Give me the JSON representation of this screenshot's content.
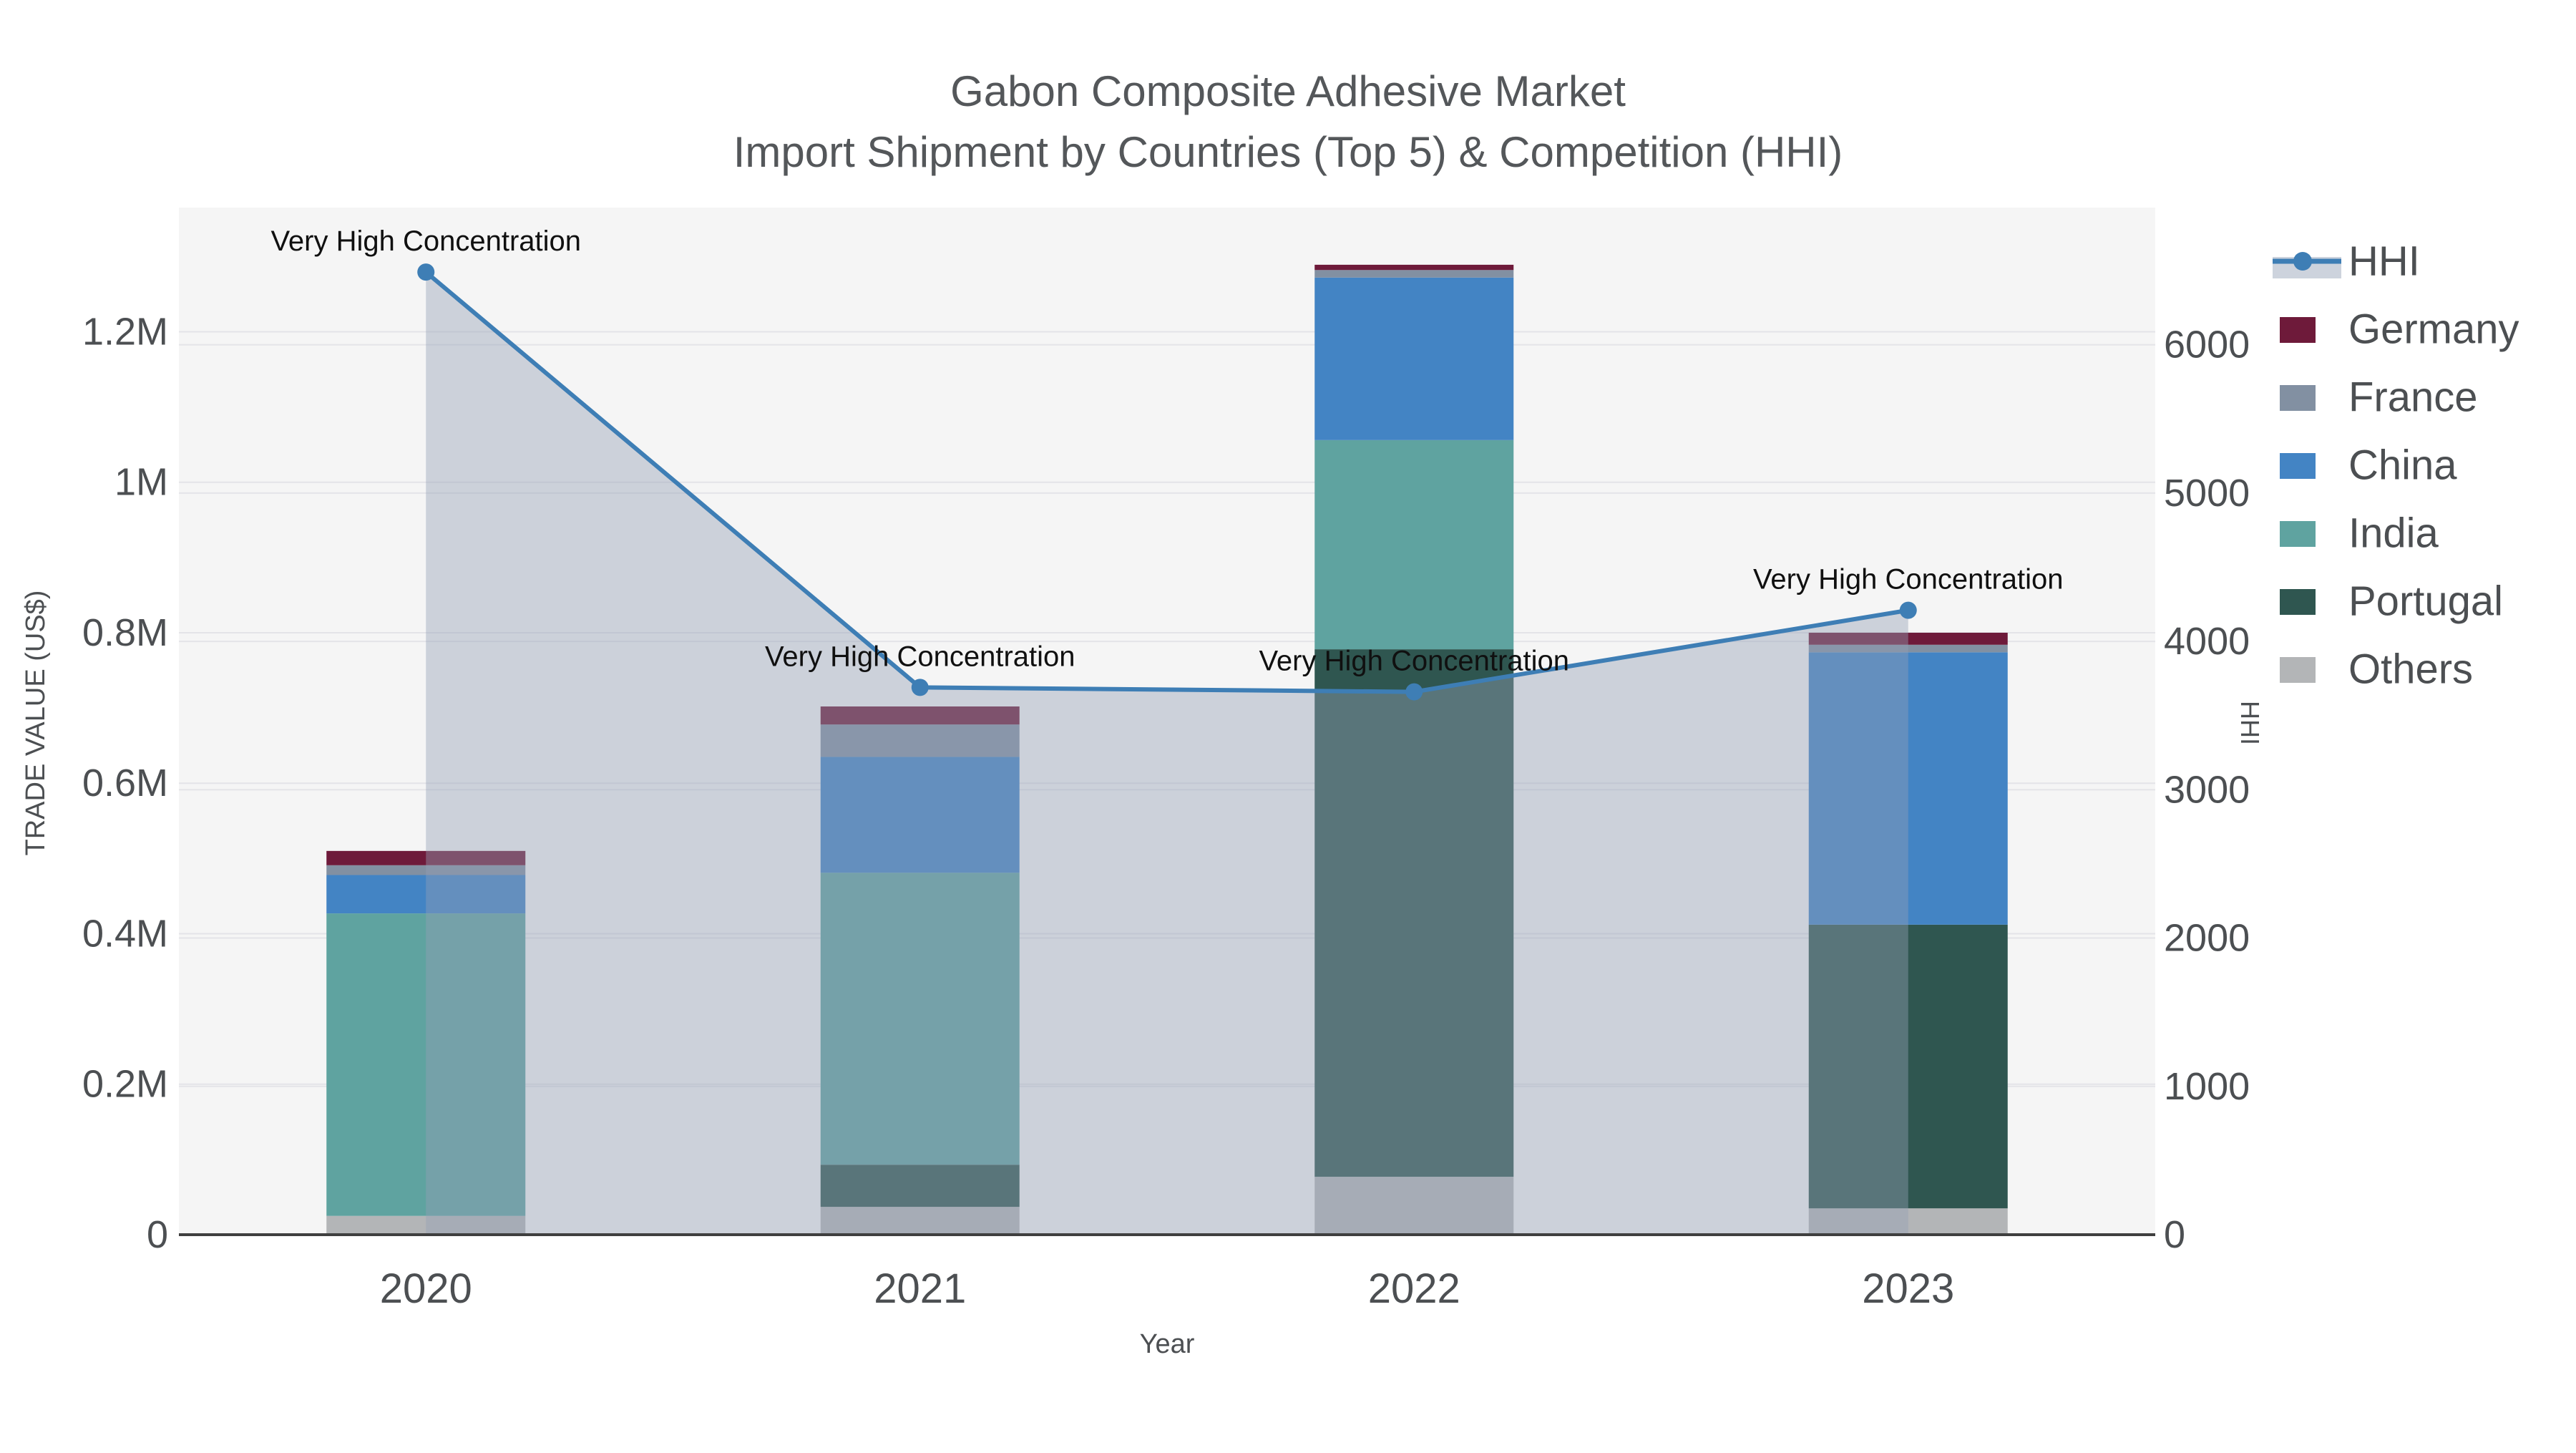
{
  "title": {
    "line1": "Gabon Composite Adhesive Market",
    "line2": "Import Shipment by Countries (Top 5) & Competition (HHI)"
  },
  "axes": {
    "x": {
      "title": "Year"
    },
    "left": {
      "title": "TRADE VALUE (US$)"
    },
    "right": {
      "title": "HHI"
    }
  },
  "legend": {
    "items": [
      {
        "label": "HHI",
        "kind": "line",
        "color": "#3E7EB5",
        "band_color": "#CDD3DD"
      },
      {
        "label": "Germany",
        "kind": "swatch",
        "color": "#6E1A3A"
      },
      {
        "label": "France",
        "kind": "swatch",
        "color": "#8290A2"
      },
      {
        "label": "China",
        "kind": "swatch",
        "color": "#4384C4"
      },
      {
        "label": "India",
        "kind": "swatch",
        "color": "#5FA3A0"
      },
      {
        "label": "Portugal",
        "kind": "swatch",
        "color": "#2F5650"
      },
      {
        "label": "Others",
        "kind": "swatch",
        "color": "#B3B5B7"
      }
    ]
  },
  "chart_data": {
    "type": "bar+line",
    "title": "Gabon Composite Adhesive Market — Import Shipment by Countries (Top 5) & Competition (HHI)",
    "categories": [
      "2020",
      "2021",
      "2022",
      "2023"
    ],
    "stack_order_bottom_to_top": [
      "Others",
      "Portugal",
      "India",
      "China",
      "France",
      "Germany"
    ],
    "series": [
      {
        "name": "Germany",
        "type": "bar",
        "color": "#6E1A3A",
        "values": [
          19000,
          24000,
          7000,
          16000
        ]
      },
      {
        "name": "France",
        "type": "bar",
        "color": "#8290A2",
        "values": [
          13000,
          43000,
          10000,
          10000
        ]
      },
      {
        "name": "China",
        "type": "bar",
        "color": "#4384C4",
        "values": [
          51000,
          154000,
          216000,
          362000
        ]
      },
      {
        "name": "India",
        "type": "bar",
        "color": "#5FA3A0",
        "values": [
          402000,
          388000,
          278000,
          0
        ]
      },
      {
        "name": "Portugal",
        "type": "bar",
        "color": "#2F5650",
        "values": [
          0,
          56000,
          701000,
          377000
        ]
      },
      {
        "name": "Others",
        "type": "bar",
        "color": "#B3B5B7",
        "values": [
          25000,
          37000,
          77000,
          35000
        ]
      }
    ],
    "bar_totals": [
      510000,
      702000,
      1289000,
      800000
    ],
    "line": {
      "name": "HHI",
      "axis": "right",
      "color": "#3E7EB5",
      "fill_color": "rgba(148,160,180,0.42)",
      "values": [
        6490,
        3690,
        3660,
        4210
      ]
    },
    "annotations": [
      {
        "text": "Very High Concentration",
        "category": "2020",
        "value": 6490
      },
      {
        "text": "Very High Concentration",
        "category": "2021",
        "value": 3690
      },
      {
        "text": "Very High Concentration",
        "category": "2022",
        "value": 3660
      },
      {
        "text": "Very High Concentration",
        "category": "2023",
        "value": 4210
      }
    ],
    "xlabel": "Year",
    "ylabel_left": "TRADE VALUE (US$)",
    "ylabel_right": "HHI",
    "ylim_left": [
      0,
      1365000
    ],
    "ylim_right": [
      0,
      6925
    ],
    "left_ticks": [
      {
        "label": "0",
        "value": 0
      },
      {
        "label": "0.2M",
        "value": 200000
      },
      {
        "label": "0.4M",
        "value": 400000
      },
      {
        "label": "0.6M",
        "value": 600000
      },
      {
        "label": "0.8M",
        "value": 800000
      },
      {
        "label": "1M",
        "value": 1000000
      },
      {
        "label": "1.2M",
        "value": 1200000
      }
    ],
    "right_ticks": [
      {
        "label": "0",
        "value": 0
      },
      {
        "label": "1000",
        "value": 1000
      },
      {
        "label": "2000",
        "value": 2000
      },
      {
        "label": "3000",
        "value": 3000
      },
      {
        "label": "4000",
        "value": 4000
      },
      {
        "label": "5000",
        "value": 5000
      },
      {
        "label": "6000",
        "value": 6000
      }
    ],
    "grid": true,
    "legend_position": "right",
    "plot_bg": "#F5F5F5",
    "grid_color": "#E4E4E8",
    "axisline_color": "#3F3F3F"
  }
}
